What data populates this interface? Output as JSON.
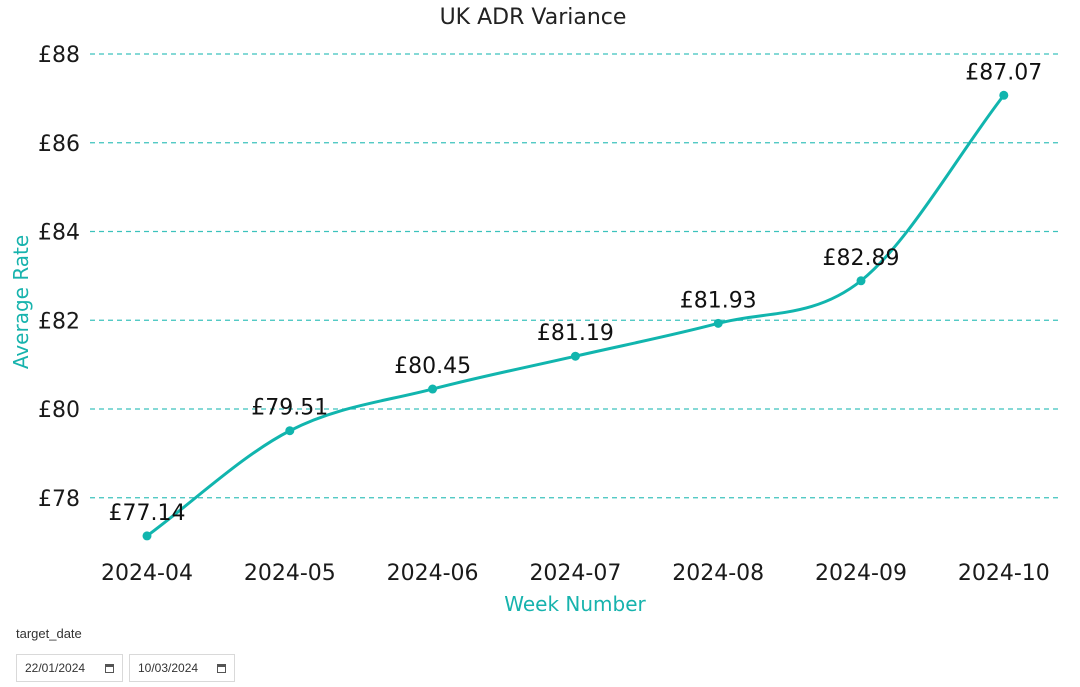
{
  "chart_data": {
    "type": "line",
    "title": "UK ADR Variance",
    "xlabel": "Week Number",
    "ylabel": "Average Rate",
    "categories": [
      "2024-04",
      "2024-05",
      "2024-06",
      "2024-07",
      "2024-08",
      "2024-09",
      "2024-10"
    ],
    "values": [
      77.14,
      79.51,
      80.45,
      81.19,
      81.93,
      82.89,
      87.07
    ],
    "data_labels": [
      "£77.14",
      "£79.51",
      "£80.45",
      "£81.19",
      "£81.93",
      "£82.89",
      "£87.07"
    ],
    "y_ticks": [
      78,
      80,
      82,
      84,
      86,
      88
    ],
    "y_tick_labels": [
      "£78",
      "£80",
      "£82",
      "£84",
      "£86",
      "£88"
    ],
    "ylim": [
      76.8,
      88
    ],
    "grid": true,
    "line_color": "#11b5ae",
    "grid_color": "#3cc2bd",
    "axis_title_color": "#17b3ad"
  },
  "slicer": {
    "label": "target_date",
    "start_date": "22/01/2024",
    "end_date": "10/03/2024",
    "icon": "calendar-icon"
  }
}
